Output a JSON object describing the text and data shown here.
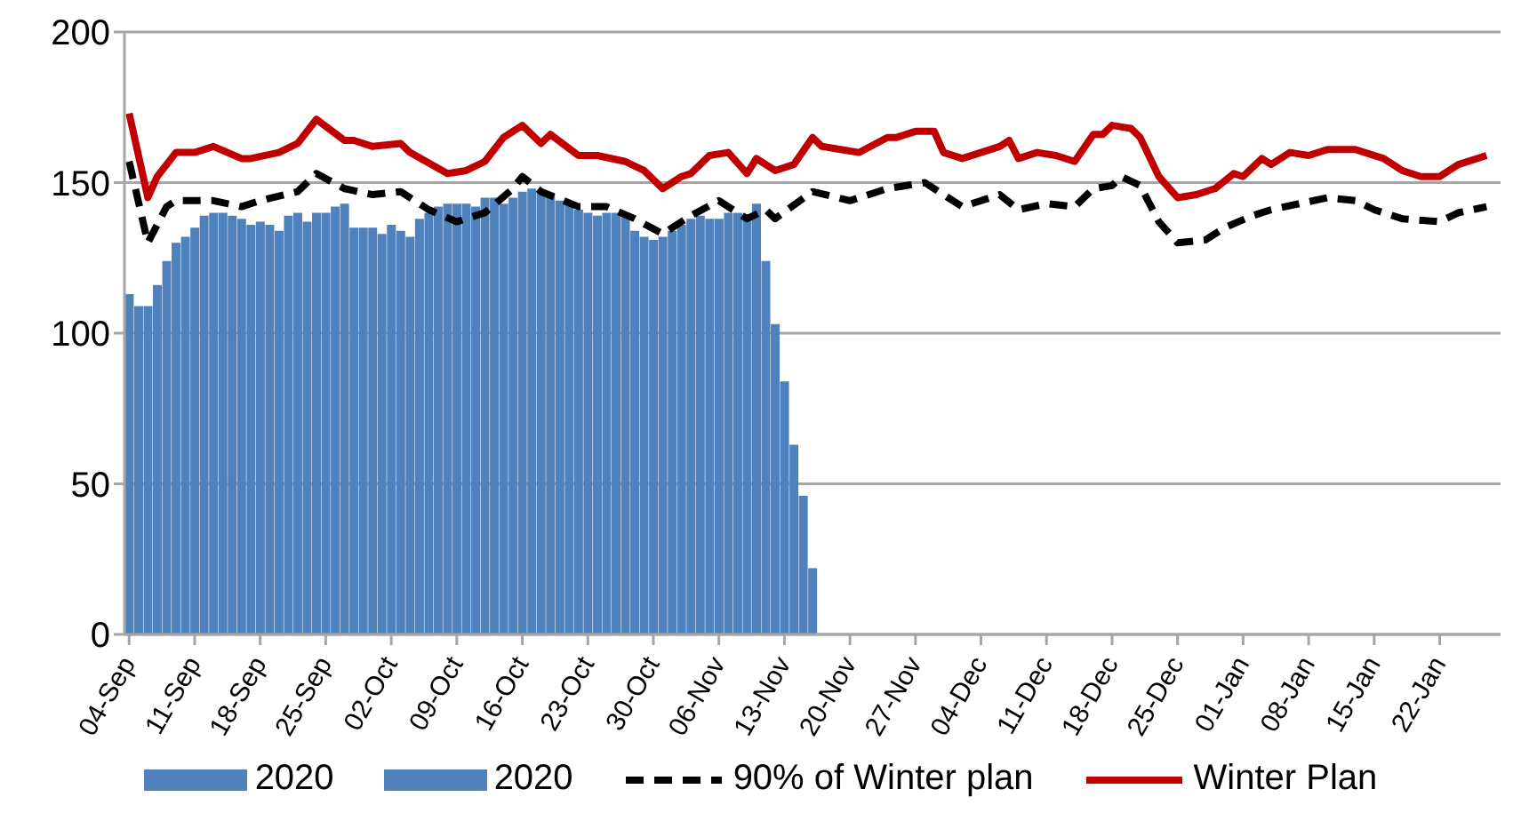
{
  "chart_data": {
    "type": "bar",
    "xlim": [
      "2020-09-03T12:00",
      "2021-01-28T12:00"
    ],
    "xticks": [
      {
        "value": "2020-09-04",
        "label": "04-Sep"
      },
      {
        "value": "2020-09-11",
        "label": "11-Sep"
      },
      {
        "value": "2020-09-18",
        "label": "18-Sep"
      },
      {
        "value": "2020-09-25",
        "label": "25-Sep"
      },
      {
        "value": "2020-10-02",
        "label": "02-Oct"
      },
      {
        "value": "2020-10-09",
        "label": "09-Oct"
      },
      {
        "value": "2020-10-16",
        "label": "16-Oct"
      },
      {
        "value": "2020-10-23",
        "label": "23-Oct"
      },
      {
        "value": "2020-10-30",
        "label": "30-Oct"
      },
      {
        "value": "2020-11-06",
        "label": "06-Nov"
      },
      {
        "value": "2020-11-13",
        "label": "13-Nov"
      },
      {
        "value": "2020-11-20",
        "label": "20-Nov"
      },
      {
        "value": "2020-11-27",
        "label": "27-Nov"
      },
      {
        "value": "2020-12-04",
        "label": "04-Dec"
      },
      {
        "value": "2020-12-11",
        "label": "11-Dec"
      },
      {
        "value": "2020-12-18",
        "label": "18-Dec"
      },
      {
        "value": "2020-12-25",
        "label": "25-Dec"
      },
      {
        "value": "2021-01-01",
        "label": "01-Jan"
      },
      {
        "value": "2021-01-08",
        "label": "08-Jan"
      },
      {
        "value": "2021-01-15",
        "label": "15-Jan"
      },
      {
        "value": "2021-01-22",
        "label": "22-Jan"
      }
    ],
    "ylim": [
      0,
      200
    ],
    "yticks": [
      0,
      50,
      100,
      150,
      200
    ],
    "grid": "y",
    "legend": "bottom",
    "series": [
      {
        "name": "2020",
        "color": "#4f81bd",
        "x": [
          "2020-09-04",
          "2020-09-05",
          "2020-09-06",
          "2020-09-07",
          "2020-09-08",
          "2020-09-09",
          "2020-09-10",
          "2020-09-11",
          "2020-09-12",
          "2020-09-13",
          "2020-09-14",
          "2020-09-15",
          "2020-09-16",
          "2020-09-17",
          "2020-09-18",
          "2020-09-19",
          "2020-09-20",
          "2020-09-21",
          "2020-09-22",
          "2020-09-23",
          "2020-09-24",
          "2020-09-25",
          "2020-09-26",
          "2020-09-27",
          "2020-09-28",
          "2020-09-29",
          "2020-09-30",
          "2020-10-01",
          "2020-10-02",
          "2020-10-03",
          "2020-10-04",
          "2020-10-05",
          "2020-10-06",
          "2020-10-07",
          "2020-10-08",
          "2020-10-09",
          "2020-10-10",
          "2020-10-11",
          "2020-10-12",
          "2020-10-13",
          "2020-10-14",
          "2020-10-15",
          "2020-10-16",
          "2020-10-17",
          "2020-10-18",
          "2020-10-19",
          "2020-10-20",
          "2020-10-21",
          "2020-10-22",
          "2020-10-23",
          "2020-10-24",
          "2020-10-25",
          "2020-10-26",
          "2020-10-27",
          "2020-10-28",
          "2020-10-29",
          "2020-10-30",
          "2020-10-31",
          "2020-11-01",
          "2020-11-02",
          "2020-11-03",
          "2020-11-04",
          "2020-11-05",
          "2020-11-06",
          "2020-11-07",
          "2020-11-08",
          "2020-11-09",
          "2020-11-10",
          "2020-11-11",
          "2020-11-12",
          "2020-11-13",
          "2020-11-14",
          "2020-11-15",
          "2020-11-16"
        ],
        "values": [
          113,
          109,
          109,
          116,
          124,
          130,
          132,
          135,
          139,
          140,
          140,
          139,
          138,
          136,
          137,
          136,
          134,
          139,
          140,
          137,
          140,
          140,
          142,
          143,
          135,
          135,
          135,
          133,
          136,
          134,
          132,
          138,
          140,
          142,
          143,
          143,
          143,
          142,
          145,
          145,
          143,
          145,
          147,
          148,
          147,
          146,
          144,
          143,
          141,
          140,
          139,
          140,
          140,
          140,
          134,
          132,
          131,
          132,
          134,
          136,
          138,
          139,
          138,
          138,
          140,
          140,
          138,
          143,
          124,
          103,
          84,
          63,
          46,
          22
        ]
      },
      {
        "name": "2020",
        "color": "#4f81bd"
      },
      {
        "name": "90% of Winter plan",
        "type": "line",
        "color": "#000000",
        "line_style": "dashed",
        "x": [
          "2020-09-04",
          "2020-09-06",
          "2020-09-08",
          "2020-09-09",
          "2020-09-13",
          "2020-09-16",
          "2020-09-18",
          "2020-09-22",
          "2020-09-24",
          "2020-09-27",
          "2020-09-30",
          "2020-10-03",
          "2020-10-06",
          "2020-10-09",
          "2020-10-12",
          "2020-10-15",
          "2020-10-16",
          "2020-10-18",
          "2020-10-22",
          "2020-10-25",
          "2020-10-28",
          "2020-10-31",
          "2020-11-03",
          "2020-11-06",
          "2020-11-09",
          "2020-11-11",
          "2020-11-12",
          "2020-11-16",
          "2020-11-20",
          "2020-11-24",
          "2020-11-28",
          "2020-12-02",
          "2020-12-06",
          "2020-12-08",
          "2020-12-11",
          "2020-12-14",
          "2020-12-16",
          "2020-12-18",
          "2020-12-19",
          "2020-12-21",
          "2020-12-23",
          "2020-12-25",
          "2020-12-28",
          "2020-12-30",
          "2021-01-02",
          "2021-01-04",
          "2021-01-07",
          "2021-01-10",
          "2021-01-13",
          "2021-01-15",
          "2021-01-18",
          "2021-01-22",
          "2021-01-24",
          "2021-01-27"
        ],
        "values": [
          157,
          130,
          142,
          144,
          144,
          142,
          144,
          147,
          153,
          148,
          146,
          147,
          141,
          137,
          140,
          148,
          152,
          147,
          142,
          142,
          138,
          133,
          139,
          144,
          138,
          141,
          138,
          147,
          144,
          148,
          150,
          142,
          146,
          141,
          143,
          142,
          148,
          149,
          152,
          149,
          137,
          130,
          131,
          135,
          139,
          141,
          143,
          145,
          144,
          141,
          138,
          137,
          140,
          142
        ]
      },
      {
        "name": "Winter Plan",
        "type": "line",
        "color": "#c00000",
        "line_style": "solid",
        "x": [
          "2020-09-04",
          "2020-09-06",
          "2020-09-07",
          "2020-09-09",
          "2020-09-11",
          "2020-09-13",
          "2020-09-16",
          "2020-09-17",
          "2020-09-20",
          "2020-09-22",
          "2020-09-24",
          "2020-09-27",
          "2020-09-28",
          "2020-09-30",
          "2020-10-03",
          "2020-10-04",
          "2020-10-08",
          "2020-10-10",
          "2020-10-12",
          "2020-10-14",
          "2020-10-16",
          "2020-10-18",
          "2020-10-19",
          "2020-10-22",
          "2020-10-24",
          "2020-10-27",
          "2020-10-29",
          "2020-10-31",
          "2020-11-02",
          "2020-11-03",
          "2020-11-05",
          "2020-11-07",
          "2020-11-09",
          "2020-11-10",
          "2020-11-12",
          "2020-11-14",
          "2020-11-16",
          "2020-11-17",
          "2020-11-19",
          "2020-11-21",
          "2020-11-24",
          "2020-11-25",
          "2020-11-27",
          "2020-11-29",
          "2020-11-30",
          "2020-12-02",
          "2020-12-04",
          "2020-12-06",
          "2020-12-07",
          "2020-12-08",
          "2020-12-10",
          "2020-12-12",
          "2020-12-14",
          "2020-12-16",
          "2020-12-17",
          "2020-12-18",
          "2020-12-20",
          "2020-12-21",
          "2020-12-23",
          "2020-12-25",
          "2020-12-27",
          "2020-12-29",
          "2020-12-31",
          "2021-01-01",
          "2021-01-03",
          "2021-01-04",
          "2021-01-06",
          "2021-01-08",
          "2021-01-10",
          "2021-01-13",
          "2021-01-16",
          "2021-01-18",
          "2021-01-20",
          "2021-01-22",
          "2021-01-24",
          "2021-01-27"
        ],
        "values": [
          173,
          145,
          152,
          160,
          160,
          162,
          158,
          158,
          160,
          163,
          171,
          164,
          164,
          162,
          163,
          160,
          153,
          154,
          157,
          165,
          169,
          163,
          166,
          159,
          159,
          157,
          154,
          148,
          152,
          153,
          159,
          160,
          153,
          158,
          154,
          156,
          165,
          162,
          161,
          160,
          165,
          165,
          167,
          167,
          160,
          158,
          160,
          162,
          164,
          158,
          160,
          159,
          157,
          166,
          166,
          169,
          168,
          165,
          152,
          145,
          146,
          148,
          153,
          152,
          158,
          156,
          160,
          159,
          161,
          161,
          158,
          154,
          152,
          152,
          156,
          159
        ]
      }
    ]
  }
}
